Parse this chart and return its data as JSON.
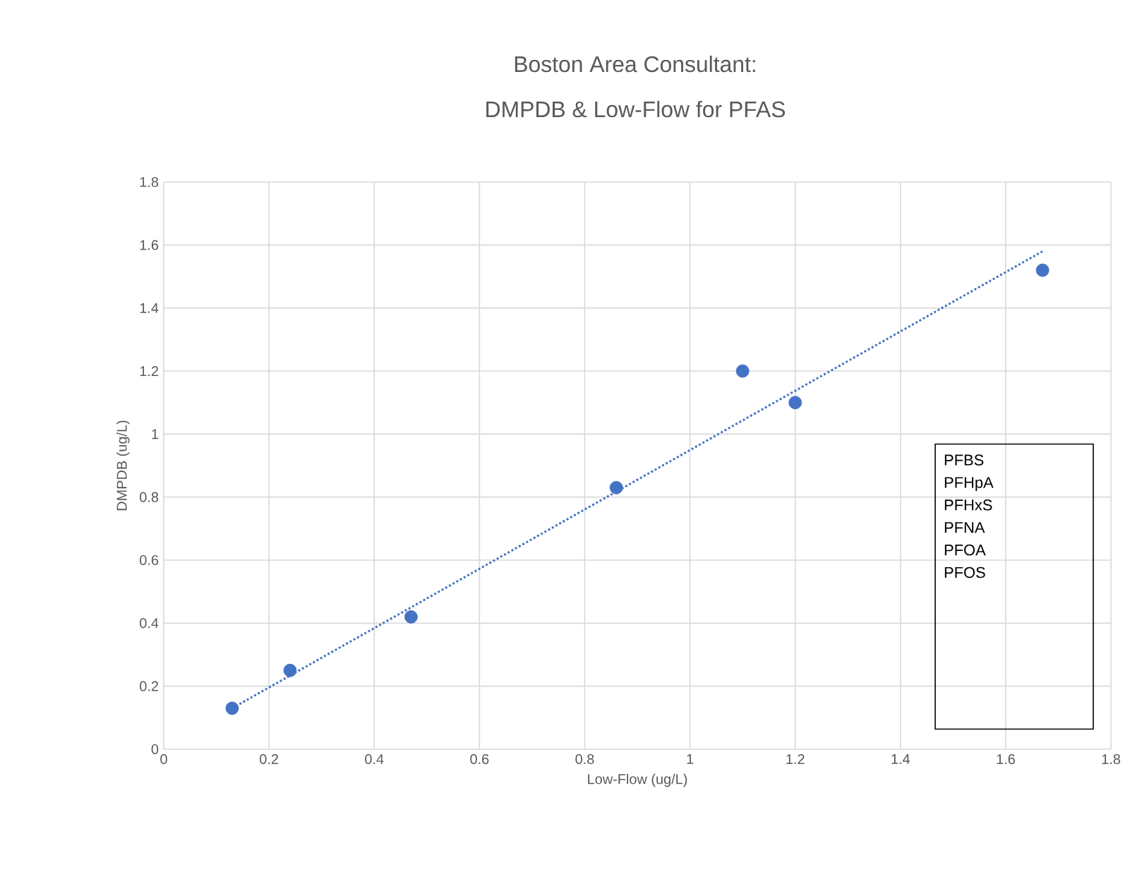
{
  "chart_data": {
    "type": "scatter",
    "title": "Boston Area Consultant:",
    "subtitle": "DMPDB & Low-Flow for PFAS",
    "xlabel": "Low-Flow (ug/L)",
    "ylabel": "DMPDB (ug/L)",
    "series": [
      {
        "type": "scatter",
        "color": "#4472c4",
        "marker": "circle",
        "x": [
          0.13,
          0.24,
          0.47,
          0.86,
          1.1,
          1.2,
          1.67
        ],
        "values": [
          0.13,
          0.25,
          0.42,
          0.83,
          1.2,
          1.1,
          1.52
        ]
      },
      {
        "type": "line",
        "color": "#4472c4",
        "marker": "none",
        "line_style": "dotted",
        "x": [
          0.13,
          1.67
        ],
        "values": [
          0.13,
          1.58
        ]
      }
    ],
    "xlim": [
      0,
      1.8
    ],
    "ylim": [
      0,
      1.8
    ],
    "xticks": [
      0,
      0.2,
      0.4,
      0.6,
      0.8,
      1,
      1.2,
      1.4,
      1.6,
      1.8
    ],
    "yticks": [
      0,
      0.2,
      0.4,
      0.6,
      0.8,
      1,
      1.2,
      1.4,
      1.6,
      1.8
    ],
    "grid": true,
    "annotations": [
      "PFBS",
      "PFHpA",
      "PFHxS",
      "PFNA",
      "PFOA",
      "PFOS"
    ]
  }
}
